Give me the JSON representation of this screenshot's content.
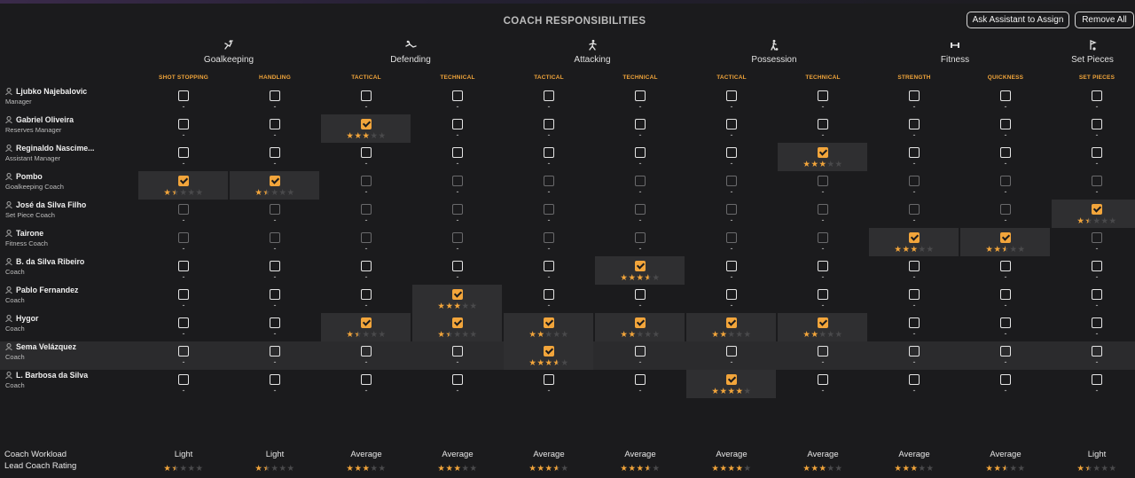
{
  "title": "COACH RESPONSIBILITIES",
  "buttons": {
    "assign": "Ask Assistant to Assign",
    "remove": "Remove All"
  },
  "areas": [
    {
      "label": "Goalkeeping",
      "icon": "goalkeeping-icon"
    },
    {
      "label": "Defending",
      "icon": "defending-icon"
    },
    {
      "label": "Attacking",
      "icon": "attacking-icon"
    },
    {
      "label": "Possession",
      "icon": "possession-icon"
    },
    {
      "label": "Fitness",
      "icon": "fitness-icon"
    },
    {
      "label": "Set Pieces",
      "icon": "set-pieces-icon"
    }
  ],
  "columns": [
    "SHOT STOPPING",
    "HANDLING",
    "TACTICAL",
    "TECHNICAL",
    "TACTICAL",
    "TECHNICAL",
    "TACTICAL",
    "TECHNICAL",
    "STRENGTH",
    "QUICKNESS",
    "SET PIECES"
  ],
  "colors": {
    "accent": "#f2a53b",
    "background": "#1b1b1d"
  },
  "coaches": [
    {
      "name": "Ljubko Najebalovic",
      "role": "Manager",
      "dim": false,
      "highlight": false,
      "cells": [
        {
          "c": false
        },
        {
          "c": false
        },
        {
          "c": false
        },
        {
          "c": false
        },
        {
          "c": false
        },
        {
          "c": false
        },
        {
          "c": false
        },
        {
          "c": false
        },
        {
          "c": false
        },
        {
          "c": false
        },
        {
          "c": false
        }
      ]
    },
    {
      "name": "Gabriel Oliveira",
      "role": "Reserves Manager",
      "dim": false,
      "highlight": false,
      "cells": [
        {
          "c": false
        },
        {
          "c": false
        },
        {
          "c": true,
          "s": 3
        },
        {
          "c": false
        },
        {
          "c": false
        },
        {
          "c": false
        },
        {
          "c": false
        },
        {
          "c": false
        },
        {
          "c": false
        },
        {
          "c": false
        },
        {
          "c": false
        }
      ]
    },
    {
      "name": "Reginaldo Nascime...",
      "role": "Assistant Manager",
      "dim": false,
      "highlight": false,
      "cells": [
        {
          "c": false
        },
        {
          "c": false
        },
        {
          "c": false
        },
        {
          "c": false
        },
        {
          "c": false
        },
        {
          "c": false
        },
        {
          "c": false
        },
        {
          "c": true,
          "s": 3
        },
        {
          "c": false
        },
        {
          "c": false
        },
        {
          "c": false
        }
      ]
    },
    {
      "name": "Pombo",
      "role": "Goalkeeping Coach",
      "dim": true,
      "highlight": false,
      "cells": [
        {
          "c": true,
          "s": 1.5
        },
        {
          "c": true,
          "s": 1.5
        },
        {
          "c": false
        },
        {
          "c": false
        },
        {
          "c": false
        },
        {
          "c": false
        },
        {
          "c": false
        },
        {
          "c": false
        },
        {
          "c": false
        },
        {
          "c": false
        },
        {
          "c": false
        }
      ]
    },
    {
      "name": "José da Silva Filho",
      "role": "Set Piece Coach",
      "dim": true,
      "highlight": false,
      "cells": [
        {
          "c": false
        },
        {
          "c": false
        },
        {
          "c": false
        },
        {
          "c": false
        },
        {
          "c": false
        },
        {
          "c": false
        },
        {
          "c": false
        },
        {
          "c": false
        },
        {
          "c": false
        },
        {
          "c": false
        },
        {
          "c": true,
          "s": 1.5
        }
      ]
    },
    {
      "name": "Tairone",
      "role": "Fitness Coach",
      "dim": true,
      "highlight": false,
      "cells": [
        {
          "c": false
        },
        {
          "c": false
        },
        {
          "c": false
        },
        {
          "c": false
        },
        {
          "c": false
        },
        {
          "c": false
        },
        {
          "c": false
        },
        {
          "c": false
        },
        {
          "c": true,
          "s": 3
        },
        {
          "c": true,
          "s": 2.5
        },
        {
          "c": false
        }
      ]
    },
    {
      "name": "B. da Silva Ribeiro",
      "role": "Coach",
      "dim": false,
      "highlight": false,
      "cells": [
        {
          "c": false
        },
        {
          "c": false
        },
        {
          "c": false
        },
        {
          "c": false
        },
        {
          "c": false
        },
        {
          "c": true,
          "s": 3.5
        },
        {
          "c": false
        },
        {
          "c": false
        },
        {
          "c": false
        },
        {
          "c": false
        },
        {
          "c": false
        }
      ]
    },
    {
      "name": "Pablo Fernandez",
      "role": "Coach",
      "dim": false,
      "highlight": false,
      "cells": [
        {
          "c": false
        },
        {
          "c": false
        },
        {
          "c": false
        },
        {
          "c": true,
          "s": 3
        },
        {
          "c": false
        },
        {
          "c": false
        },
        {
          "c": false
        },
        {
          "c": false
        },
        {
          "c": false
        },
        {
          "c": false
        },
        {
          "c": false
        }
      ]
    },
    {
      "name": "Hygor",
      "role": "Coach",
      "dim": false,
      "highlight": false,
      "cells": [
        {
          "c": false
        },
        {
          "c": false
        },
        {
          "c": true,
          "s": 1.5
        },
        {
          "c": true,
          "s": 1.5
        },
        {
          "c": true,
          "s": 2
        },
        {
          "c": true,
          "s": 2
        },
        {
          "c": true,
          "s": 2
        },
        {
          "c": true,
          "s": 2
        },
        {
          "c": false
        },
        {
          "c": false
        },
        {
          "c": false
        }
      ]
    },
    {
      "name": "Sema Velázquez",
      "role": "Coach",
      "dim": false,
      "highlight": true,
      "cells": [
        {
          "c": false
        },
        {
          "c": false
        },
        {
          "c": false
        },
        {
          "c": false
        },
        {
          "c": true,
          "s": 3.5
        },
        {
          "c": false
        },
        {
          "c": false
        },
        {
          "c": false
        },
        {
          "c": false
        },
        {
          "c": false
        },
        {
          "c": false
        }
      ]
    },
    {
      "name": "L. Barbosa da Silva",
      "role": "Coach",
      "dim": false,
      "highlight": false,
      "cells": [
        {
          "c": false
        },
        {
          "c": false
        },
        {
          "c": false
        },
        {
          "c": false
        },
        {
          "c": false
        },
        {
          "c": false
        },
        {
          "c": true,
          "s": 4
        },
        {
          "c": false
        },
        {
          "c": false
        },
        {
          "c": false
        },
        {
          "c": false
        }
      ]
    }
  ],
  "empty_cell_text": "-",
  "footer": {
    "workload_label": "Coach Workload",
    "rating_label": "Lead Coach Rating",
    "workload": [
      "Light",
      "Light",
      "Average",
      "Average",
      "Average",
      "Average",
      "Average",
      "Average",
      "Average",
      "Average",
      "Light"
    ],
    "ratings": [
      1.5,
      1.5,
      3,
      3,
      3.5,
      3.5,
      4,
      3,
      3,
      2.5,
      1.5
    ]
  }
}
